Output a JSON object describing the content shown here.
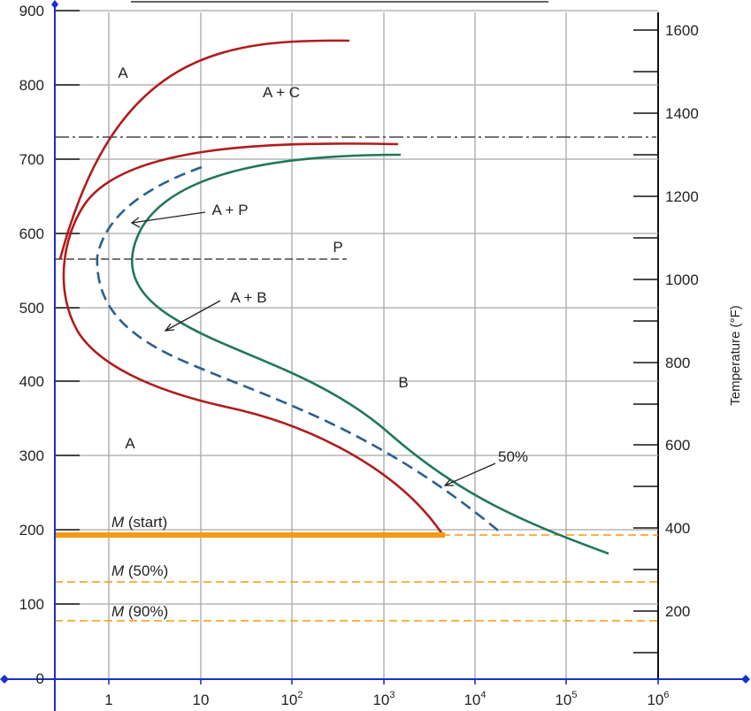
{
  "left_axis": {
    "ticks": [
      "900",
      "800",
      "700",
      "600",
      "500",
      "400",
      "300",
      "200",
      "100",
      "0"
    ]
  },
  "right_axis": {
    "title": "Temperature (°F)",
    "ticks": [
      "1600",
      "1400",
      "1200",
      "1000",
      "800",
      "600",
      "400",
      "200"
    ]
  },
  "x_axis": {
    "ticks": [
      {
        "base": "1",
        "exp": ""
      },
      {
        "base": "10",
        "exp": ""
      },
      {
        "base": "10",
        "exp": "2"
      },
      {
        "base": "10",
        "exp": "3"
      },
      {
        "base": "10",
        "exp": "4"
      },
      {
        "base": "10",
        "exp": "5"
      },
      {
        "base": "10",
        "exp": "6"
      }
    ]
  },
  "regions": {
    "austenite_top": "A",
    "austenite_plus_cementite": "A + C",
    "austenite_plus_pearlite": "A + P",
    "pearlite": "P",
    "austenite_plus_bainite": "A + B",
    "bainite": "B",
    "austenite_bottom": "A",
    "fifty_percent": "50%"
  },
  "martensite_lines": [
    {
      "letter": "M",
      "rest": " (start)",
      "temperature_c": 192
    },
    {
      "letter": "M",
      "rest": " (50%)",
      "temperature_c": 130
    },
    {
      "letter": "M",
      "rest": " (90%)",
      "temperature_c": 78
    }
  ],
  "colors": {
    "start_curve": "#b01c1c",
    "fifty_percent_curve": "#2a5f8f",
    "finish_curve": "#20775a",
    "martensite": "#f49a11",
    "axis": "#1a2fd0"
  }
}
